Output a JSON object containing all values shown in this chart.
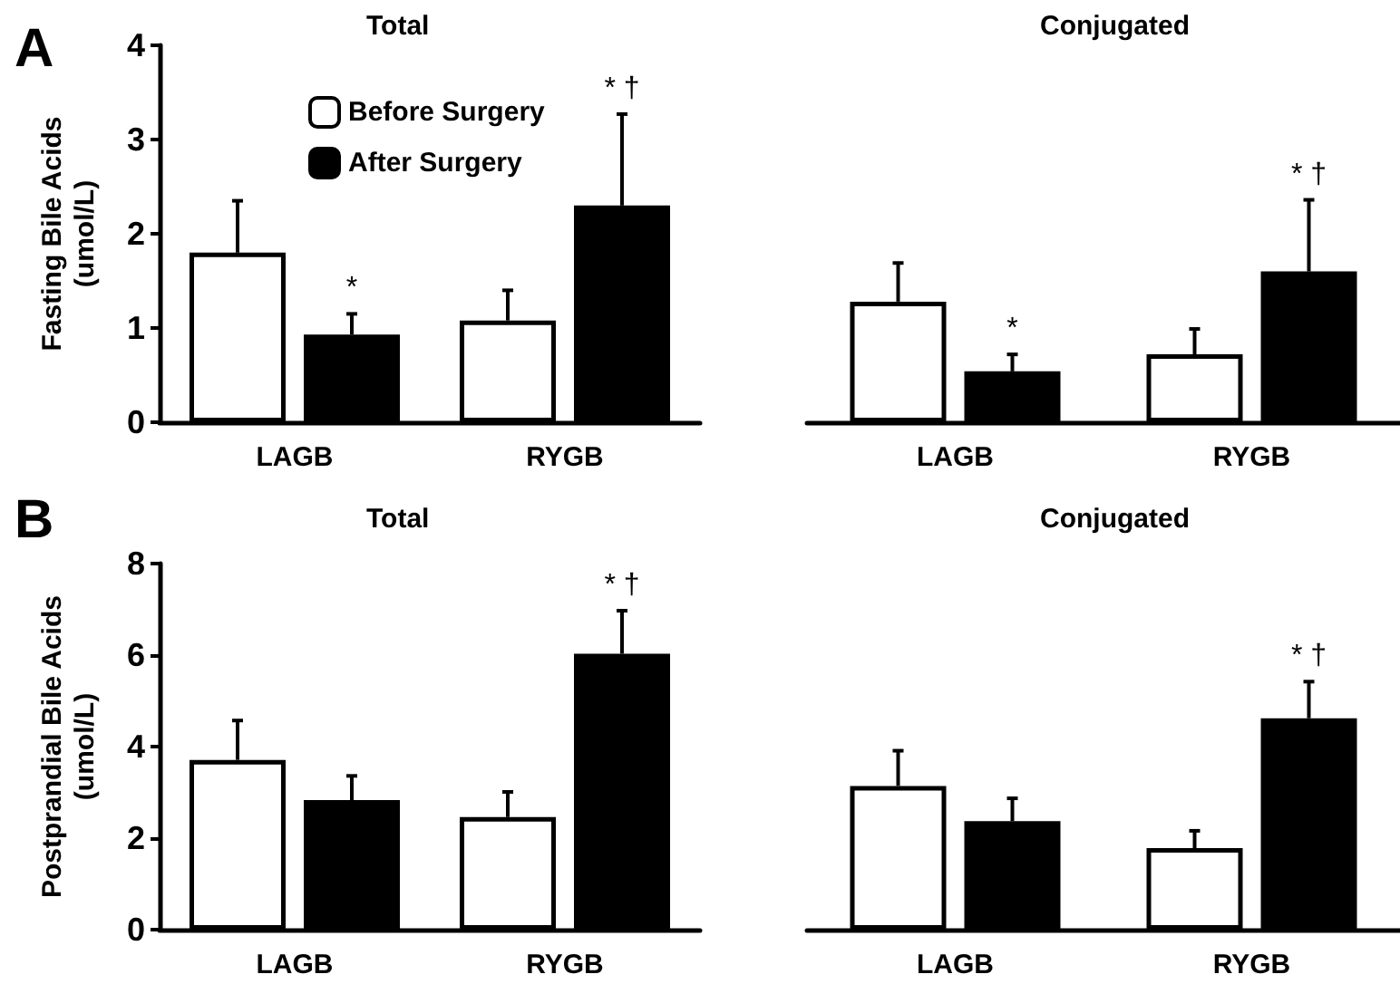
{
  "chart_data": [
    {
      "type": "bar",
      "title": "Total",
      "ylabel": "Fasting Bile Acids\n(umol/L)",
      "categories": [
        "LAGB",
        "RYGB"
      ],
      "ylim": [
        0,
        4
      ],
      "yticks": [
        0,
        1,
        2,
        3,
        4
      ],
      "grid": false,
      "legend": "top right",
      "series": [
        {
          "name": "Before Surgery",
          "color": "#ffffff",
          "values": [
            1.8,
            1.08
          ],
          "errors": [
            0.55,
            0.32
          ]
        },
        {
          "name": "After Surgery",
          "color": "#000000",
          "values": [
            0.93,
            2.3
          ],
          "errors": [
            0.22,
            0.97
          ]
        }
      ],
      "subtitle": "A",
      "annotations": [
        "*",
        "* †"
      ]
    },
    {
      "type": "bar",
      "title": "Conjugated",
      "categories": [
        "LAGB",
        "RYGB"
      ],
      "ylim": [
        0,
        4
      ],
      "yticks": [
        0,
        1,
        2,
        3,
        4
      ],
      "tick_labels": "x",
      "grid": false,
      "legend": false,
      "series": [
        {
          "color": "#ffffff",
          "values": [
            1.28,
            0.72
          ],
          "errors": [
            0.41,
            0.27
          ]
        },
        {
          "color": "#000000",
          "values": [
            0.54,
            1.6
          ],
          "errors": [
            0.18,
            0.76
          ]
        }
      ],
      "annotations": [
        "*",
        "* †"
      ]
    },
    {
      "type": "bar",
      "title": "Total",
      "ylabel": "Postprandial Bile Acids\n(umol/L)",
      "categories": [
        "LAGB",
        "RYGB"
      ],
      "ylim": [
        0,
        8
      ],
      "yticks": [
        0,
        2,
        4,
        6,
        8
      ],
      "grid": false,
      "legend": false,
      "series": [
        {
          "color": "#ffffff",
          "values": [
            3.71,
            2.46
          ],
          "errors": [
            0.86,
            0.55
          ]
        },
        {
          "color": "#000000",
          "values": [
            2.83,
            6.03
          ],
          "errors": [
            0.53,
            0.94
          ]
        }
      ],
      "subtitle": "B",
      "annotations": [
        "* †"
      ]
    },
    {
      "type": "bar",
      "title": "Conjugated",
      "categories": [
        "LAGB",
        "RYGB"
      ],
      "ylim": [
        0,
        8
      ],
      "yticks": [
        0,
        2,
        4,
        6,
        8
      ],
      "tick_labels": "x",
      "grid": false,
      "legend": false,
      "series": [
        {
          "color": "#ffffff",
          "values": [
            3.14,
            1.78
          ],
          "errors": [
            0.77,
            0.38
          ]
        },
        {
          "color": "#000000",
          "values": [
            2.37,
            4.62
          ],
          "errors": [
            0.5,
            0.8
          ]
        }
      ],
      "annotations": [
        "* †"
      ]
    }
  ]
}
